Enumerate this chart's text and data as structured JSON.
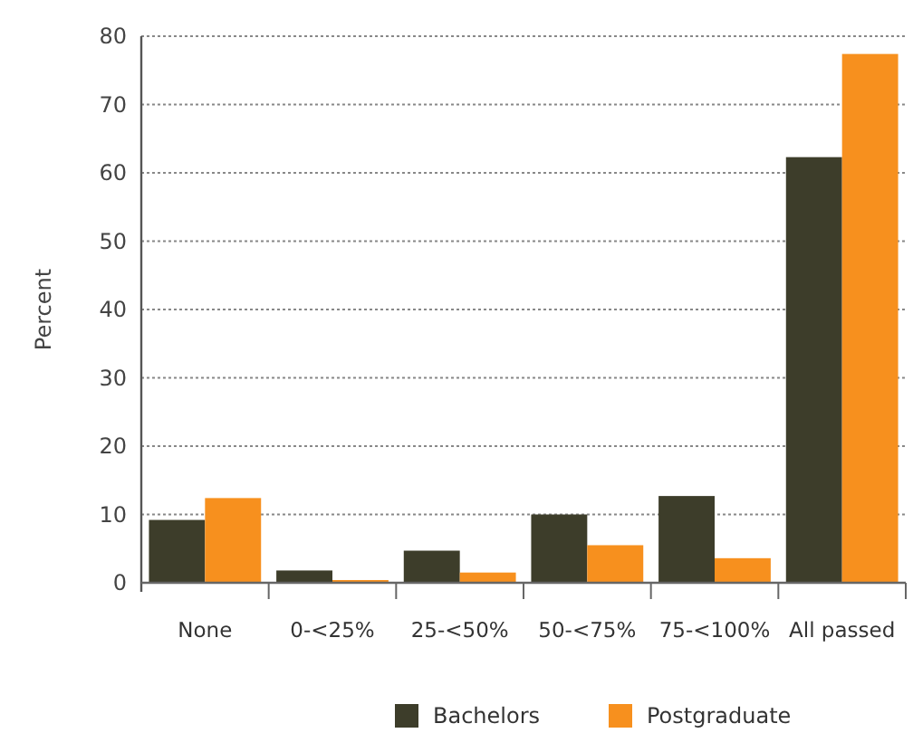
{
  "chart_data": {
    "type": "bar",
    "ylabel": "Percent",
    "categories": [
      "None",
      "0-<25%",
      "25-<50%",
      "50-<75%",
      "75-<100%",
      "All passed"
    ],
    "series": [
      {
        "name": "Bachelors",
        "color": "#3d3d2a",
        "values": [
          9.2,
          1.8,
          4.7,
          10.0,
          12.7,
          62.3
        ]
      },
      {
        "name": "Postgraduate",
        "color": "#f7901e",
        "values": [
          12.4,
          0.4,
          1.5,
          5.5,
          3.6,
          77.4
        ]
      }
    ],
    "ylim": [
      0,
      80
    ],
    "yticks": [
      0,
      10,
      20,
      30,
      40,
      50,
      60,
      70,
      80
    ],
    "grid": "y",
    "legend": "bottom"
  }
}
